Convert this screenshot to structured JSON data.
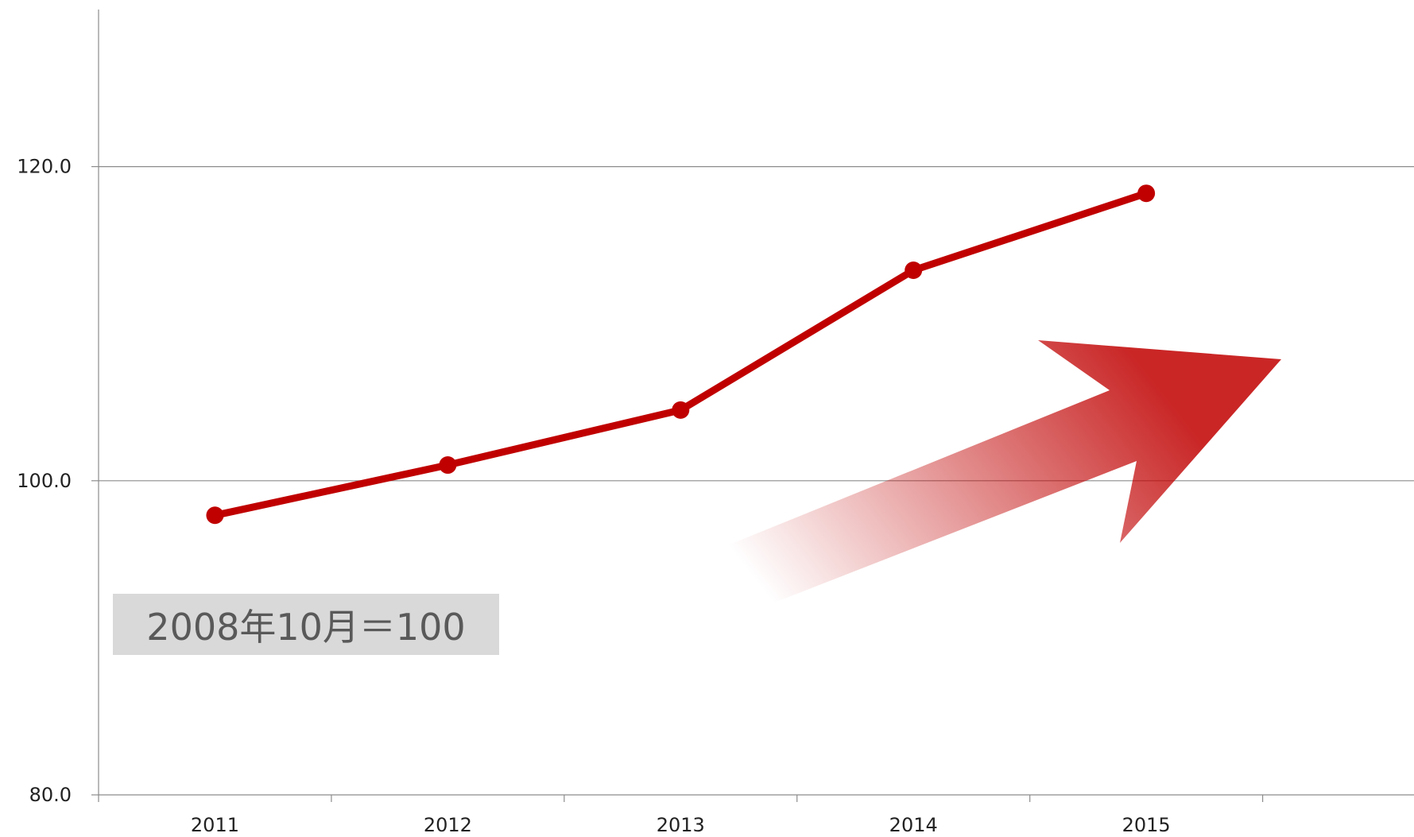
{
  "chart_data": {
    "type": "line",
    "categories": [
      "2011",
      "2012",
      "2013",
      "2014",
      "2015"
    ],
    "series": [
      {
        "values": [
          97.8,
          101.0,
          104.5,
          113.4,
          118.3
        ]
      }
    ],
    "ylim": [
      80,
      130
    ],
    "yticks": [
      "80.0",
      "100.0",
      "120.0"
    ],
    "ytick_values": [
      80,
      100,
      120
    ],
    "grid": true,
    "note": "2008年10月＝100",
    "colors": {
      "line": "#c00000",
      "arrow": "#c00000",
      "note_bg": "#d9d9d9",
      "note_text": "#595959"
    }
  }
}
